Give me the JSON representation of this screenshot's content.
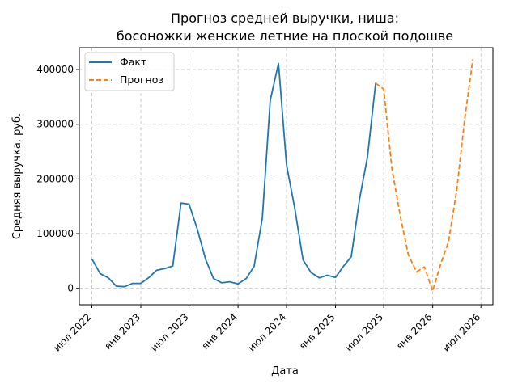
{
  "chart_data": {
    "type": "line",
    "title_line1": "Прогноз средней выручки, ниша:",
    "title_line2": "босоножки женские летние на плоской подошве",
    "xlabel": "Дата",
    "ylabel": "Средняя выручка, руб.",
    "xlim": [
      "2022-05-15",
      "2026-08-15"
    ],
    "ylim": [
      -30000,
      440000
    ],
    "x_ticks": [
      {
        "date": "2022-07-01",
        "label": "июл 2022"
      },
      {
        "date": "2023-01-01",
        "label": "янв 2023"
      },
      {
        "date": "2023-07-01",
        "label": "июл 2023"
      },
      {
        "date": "2024-01-01",
        "label": "янв 2024"
      },
      {
        "date": "2024-07-01",
        "label": "июл 2024"
      },
      {
        "date": "2025-01-01",
        "label": "янв 2025"
      },
      {
        "date": "2025-07-01",
        "label": "июл 2025"
      },
      {
        "date": "2026-01-01",
        "label": "янв 2026"
      },
      {
        "date": "2026-07-01",
        "label": "июл 2026"
      }
    ],
    "y_ticks": [
      {
        "value": 0,
        "label": "0"
      },
      {
        "value": 100000,
        "label": "100000"
      },
      {
        "value": 200000,
        "label": "200000"
      },
      {
        "value": 300000,
        "label": "300000"
      },
      {
        "value": 400000,
        "label": "400000"
      }
    ],
    "grid": true,
    "legend_position": "top-left",
    "series": [
      {
        "name": "Факт",
        "color": "#1f77b4",
        "style": "solid",
        "points": [
          [
            "2022-07-01",
            54000
          ],
          [
            "2022-08-01",
            27000
          ],
          [
            "2022-09-01",
            19000
          ],
          [
            "2022-10-01",
            4000
          ],
          [
            "2022-11-01",
            3000
          ],
          [
            "2022-12-01",
            9000
          ],
          [
            "2023-01-01",
            9000
          ],
          [
            "2023-02-01",
            20000
          ],
          [
            "2023-03-01",
            33000
          ],
          [
            "2023-04-01",
            36000
          ],
          [
            "2023-05-01",
            41000
          ],
          [
            "2023-06-01",
            156000
          ],
          [
            "2023-07-01",
            154000
          ],
          [
            "2023-08-01",
            108000
          ],
          [
            "2023-09-01",
            53000
          ],
          [
            "2023-10-01",
            18000
          ],
          [
            "2023-11-01",
            10000
          ],
          [
            "2023-12-01",
            12000
          ],
          [
            "2024-01-01",
            8000
          ],
          [
            "2024-02-01",
            18000
          ],
          [
            "2024-03-01",
            40000
          ],
          [
            "2024-04-01",
            128000
          ],
          [
            "2024-05-01",
            344000
          ],
          [
            "2024-06-01",
            411000
          ],
          [
            "2024-07-01",
            226000
          ],
          [
            "2024-08-01",
            146000
          ],
          [
            "2024-09-01",
            52000
          ],
          [
            "2024-10-01",
            29000
          ],
          [
            "2024-11-01",
            19000
          ],
          [
            "2024-12-01",
            24000
          ],
          [
            "2025-01-01",
            20000
          ],
          [
            "2025-02-01",
            41000
          ],
          [
            "2025-03-01",
            58000
          ],
          [
            "2025-04-01",
            163000
          ],
          [
            "2025-05-01",
            240000
          ],
          [
            "2025-06-01",
            376000
          ]
        ]
      },
      {
        "name": "Прогноз",
        "color": "#ff7f0e",
        "style": "dashed",
        "points": [
          [
            "2025-06-01",
            375000
          ],
          [
            "2025-07-01",
            364000
          ],
          [
            "2025-08-01",
            218000
          ],
          [
            "2025-09-01",
            133000
          ],
          [
            "2025-10-01",
            62000
          ],
          [
            "2025-11-01",
            30000
          ],
          [
            "2025-12-01",
            39000
          ],
          [
            "2026-01-01",
            -5000
          ],
          [
            "2026-02-01",
            46000
          ],
          [
            "2026-03-01",
            85000
          ],
          [
            "2026-04-01",
            179000
          ],
          [
            "2026-05-01",
            309000
          ],
          [
            "2026-06-01",
            419000
          ]
        ]
      }
    ]
  }
}
